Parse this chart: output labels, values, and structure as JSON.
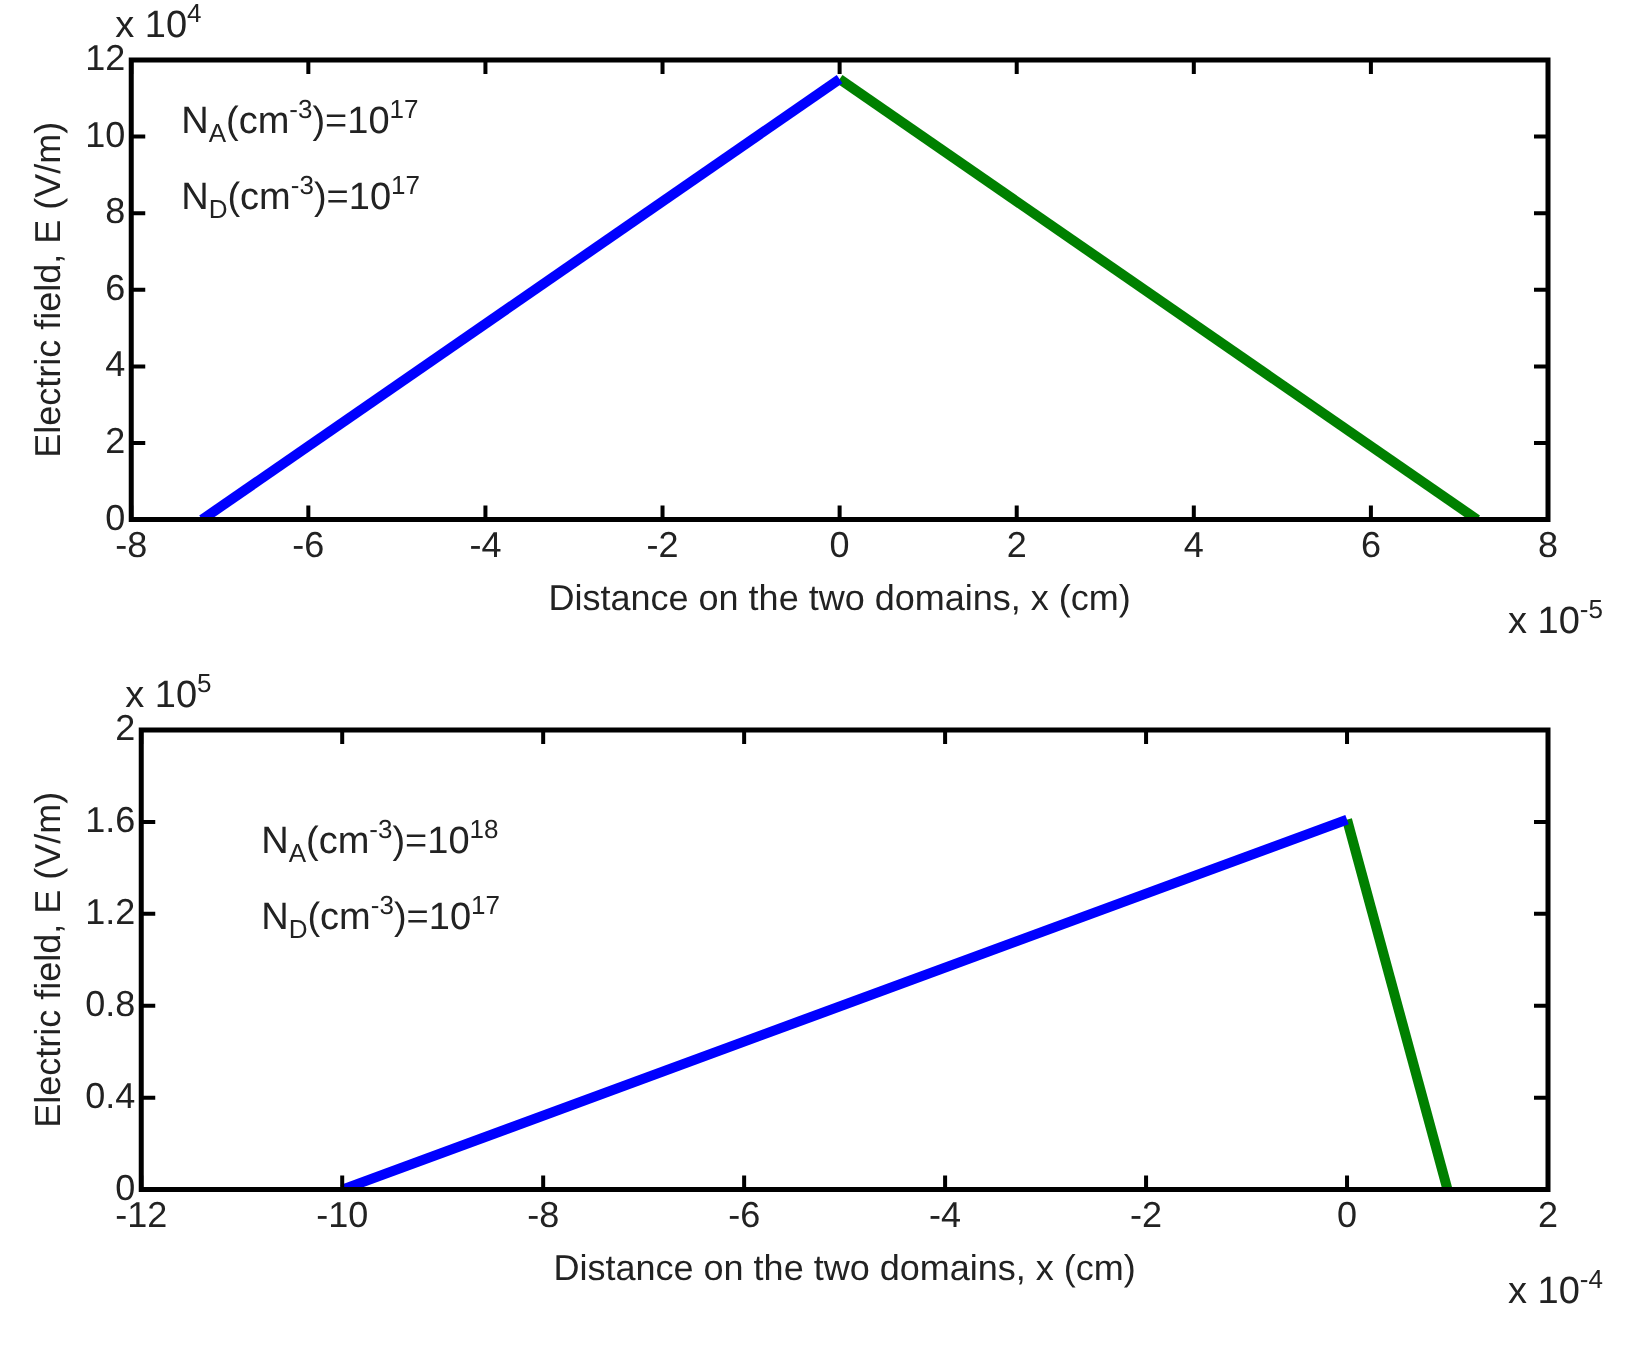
{
  "chart_data": [
    {
      "type": "line",
      "xlabel": "Distance on the two domains, x (cm)",
      "ylabel": "Electric field, E (V/m)",
      "xlim": [
        -8,
        8
      ],
      "xticks": [
        -8,
        -6,
        -4,
        -2,
        0,
        2,
        4,
        6,
        8
      ],
      "ylim": [
        0,
        12
      ],
      "yticks": [
        0,
        2,
        4,
        6,
        8,
        10,
        12
      ],
      "marker": "none",
      "line_style": "solid",
      "series": [
        {
          "color": "#0000ff",
          "x": [
            -7.2,
            0
          ],
          "values": [
            0,
            11.5
          ]
        },
        {
          "color": "#008000",
          "x": [
            0,
            7.2
          ],
          "values": [
            11.5,
            0
          ]
        }
      ],
      "annotations": [
        "x 10$^{4}$",
        "x 10$^{-5}$",
        "N$_{A}$(cm$^{-3}$)=10$^{17}$",
        "N$_{D}$(cm$^{-3}$)=10$^{17}$"
      ]
    },
    {
      "type": "line",
      "xlabel": "Distance on the two domains, x (cm)",
      "ylabel": "Electric field, E (V/m)",
      "xlim": [
        -12,
        2
      ],
      "xticks": [
        -12,
        -10,
        -8,
        -6,
        -4,
        -2,
        0,
        2
      ],
      "ylim": [
        0,
        2
      ],
      "yticks": [
        0,
        0.4,
        0.8,
        1.2,
        1.6,
        2
      ],
      "marker": "none",
      "line_style": "solid",
      "series": [
        {
          "color": "#0000ff",
          "x": [
            -10,
            0
          ],
          "values": [
            0,
            1.61
          ]
        },
        {
          "color": "#008000",
          "x": [
            0,
            1
          ],
          "values": [
            1.61,
            0
          ]
        }
      ],
      "annotations": [
        "x 10$^{5}$",
        "x 10$^{-4}$",
        "N$_{A}$(cm$^{-3}$)=10$^{18}$",
        "N$_{D}$(cm$^{-3}$)=10$^{17}$"
      ]
    }
  ]
}
